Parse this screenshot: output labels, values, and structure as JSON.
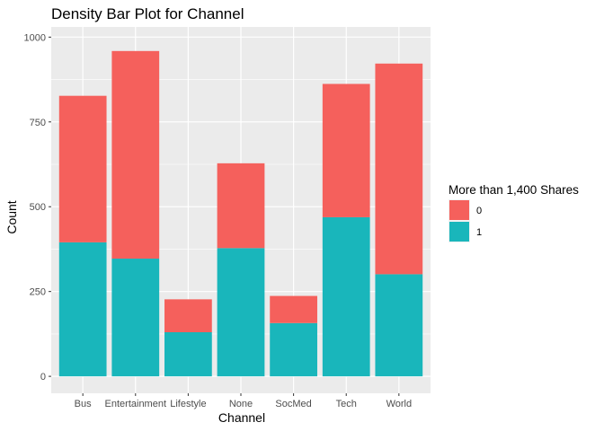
{
  "chart_data": {
    "type": "bar",
    "stacked": true,
    "title": "Density Bar Plot for Channel",
    "xlabel": "Channel",
    "ylabel": "Count",
    "categories": [
      "Bus",
      "Entertainment",
      "Lifestyle",
      "None",
      "SocMed",
      "Tech",
      "World"
    ],
    "ylim": [
      0,
      1000
    ],
    "yticks": [
      0,
      250,
      500,
      750,
      1000
    ],
    "grid": true,
    "legend": {
      "title": "More than 1,400 Shares",
      "position": "right"
    },
    "series": [
      {
        "name": "1",
        "color": "#19B6BB",
        "values": [
          395,
          347,
          130,
          378,
          157,
          469,
          301
        ]
      },
      {
        "name": "0",
        "color": "#F5605C",
        "values": [
          432,
          612,
          97,
          250,
          80,
          393,
          621
        ]
      }
    ],
    "legend_order": [
      "0",
      "1"
    ]
  }
}
